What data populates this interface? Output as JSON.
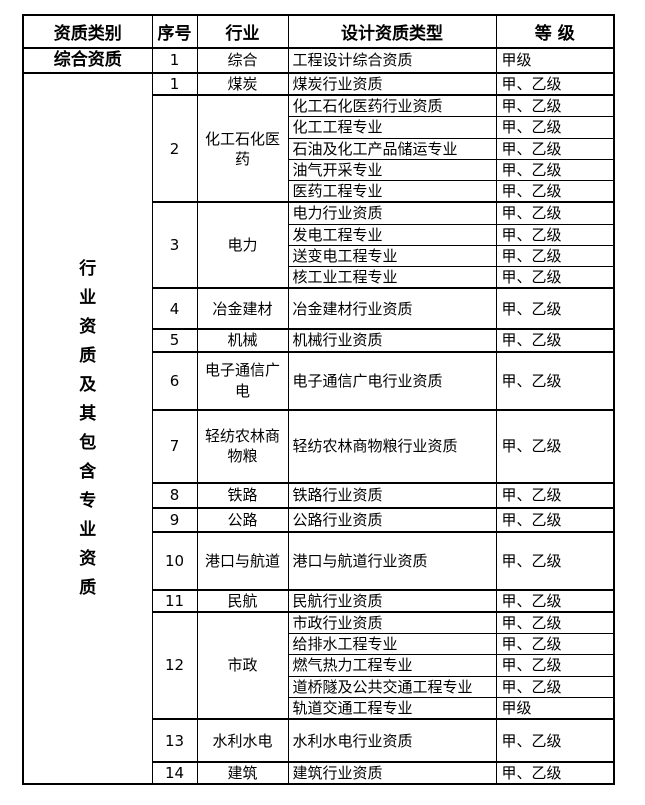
{
  "table": {
    "headers": [
      "资质类别",
      "序号",
      "行业",
      "设计资质类型",
      "等 级"
    ],
    "comprehensive_row": {
      "category": "综合资质",
      "no": "1",
      "industry": "综合",
      "type": "工程设计综合资质",
      "grade": "甲级"
    },
    "industry_category_label": "行业资质及其包含专业资质",
    "sections": [
      {
        "no": "1",
        "industry": "煤炭",
        "rows": [
          {
            "type": "煤炭行业资质",
            "grade": "甲、乙级"
          }
        ]
      },
      {
        "no": "2",
        "industry": "化工石化医药",
        "rows": [
          {
            "type": "化工石化医药行业资质",
            "grade": "甲、乙级"
          },
          {
            "type": "化工工程专业",
            "grade": "甲、乙级"
          },
          {
            "type": "石油及化工产品储运专业",
            "grade": "甲、乙级"
          },
          {
            "type": "油气开采专业",
            "grade": "甲、乙级"
          },
          {
            "type": "医药工程专业",
            "grade": "甲、乙级"
          }
        ]
      },
      {
        "no": "3",
        "industry": "电力",
        "rows": [
          {
            "type": "电力行业资质",
            "grade": "甲、乙级"
          },
          {
            "type": "发电工程专业",
            "grade": "甲、乙级"
          },
          {
            "type": "送变电工程专业",
            "grade": "甲、乙级"
          },
          {
            "type": "核工业工程专业",
            "grade": "甲、乙级"
          }
        ]
      },
      {
        "no": "4",
        "industry": "冶金建材",
        "rows": [
          {
            "type": "冶金建材行业资质",
            "grade": "甲、乙级"
          }
        ]
      },
      {
        "no": "5",
        "industry": "机械",
        "rows": [
          {
            "type": "机械行业资质",
            "grade": "甲、乙级"
          }
        ]
      },
      {
        "no": "6",
        "industry": "电子通信广电",
        "rows": [
          {
            "type": "电子通信广电行业资质",
            "grade": "甲、乙级"
          }
        ]
      },
      {
        "no": "7",
        "industry": "轻纺农林商物粮",
        "rows": [
          {
            "type": "轻纺农林商物粮行业资质",
            "grade": "甲、乙级"
          }
        ]
      },
      {
        "no": "8",
        "industry": "铁路",
        "rows": [
          {
            "type": "铁路行业资质",
            "grade": "甲、乙级"
          }
        ]
      },
      {
        "no": "9",
        "industry": "公路",
        "rows": [
          {
            "type": "公路行业资质",
            "grade": "甲、乙级"
          }
        ]
      },
      {
        "no": "10",
        "industry": "港口与航道",
        "rows": [
          {
            "type": "港口与航道行业资质",
            "grade": "甲、乙级"
          }
        ]
      },
      {
        "no": "11",
        "industry": "民航",
        "rows": [
          {
            "type": "民航行业资质",
            "grade": "甲、乙级"
          }
        ]
      },
      {
        "no": "12",
        "industry": "市政",
        "rows": [
          {
            "type": "市政行业资质",
            "grade": "甲、乙级"
          },
          {
            "type": "给排水工程专业",
            "grade": "甲、乙级"
          },
          {
            "type": "燃气热力工程专业",
            "grade": "甲、乙级"
          },
          {
            "type": "道桥隧及公共交通工程专业",
            "grade": "甲、乙级"
          },
          {
            "type": "轨道交通工程专业",
            "grade": "甲级"
          }
        ]
      },
      {
        "no": "13",
        "industry": "水利水电",
        "rows": [
          {
            "type": "水利水电行业资质",
            "grade": "甲、乙级"
          }
        ]
      },
      {
        "no": "14",
        "industry": "建筑",
        "rows": [
          {
            "type": "建筑行业资质",
            "grade": "甲、乙级"
          }
        ]
      }
    ],
    "colors": {
      "border": "#000000",
      "text": "#000000",
      "background": "#ffffff"
    }
  }
}
